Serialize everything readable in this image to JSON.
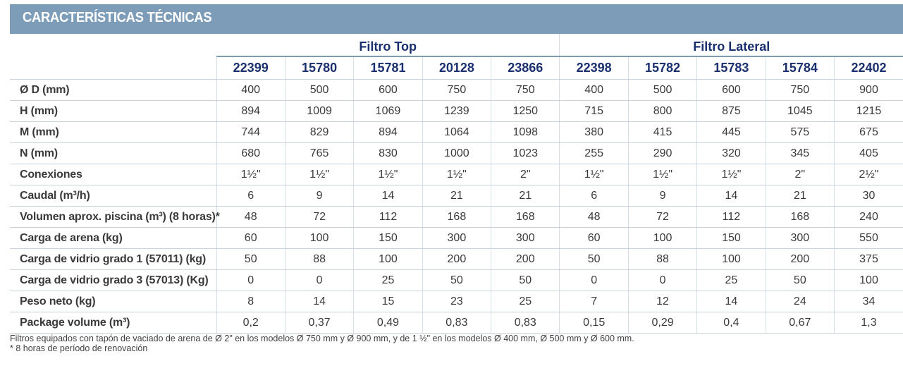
{
  "title": "CARACTERÍSTICAS TÉCNICAS",
  "groups": {
    "top": "Filtro Top",
    "lateral": "Filtro Lateral"
  },
  "codes": [
    "22399",
    "15780",
    "15781",
    "20128",
    "23866",
    "22398",
    "15782",
    "15783",
    "15784",
    "22402"
  ],
  "rows": [
    {
      "label": "Ø D (mm)",
      "values": [
        "400",
        "500",
        "600",
        "750",
        "750",
        "400",
        "500",
        "600",
        "750",
        "900"
      ]
    },
    {
      "label": "H (mm)",
      "values": [
        "894",
        "1009",
        "1069",
        "1239",
        "1250",
        "715",
        "800",
        "875",
        "1045",
        "1215"
      ]
    },
    {
      "label": "M (mm)",
      "values": [
        "744",
        "829",
        "894",
        "1064",
        "1098",
        "380",
        "415",
        "445",
        "575",
        "675"
      ]
    },
    {
      "label": "N (mm)",
      "values": [
        "680",
        "765",
        "830",
        "1000",
        "1023",
        "255",
        "290",
        "320",
        "345",
        "405"
      ]
    },
    {
      "label": "Conexiones",
      "values": [
        "1½\"",
        "1½\"",
        "1½\"",
        "1½\"",
        "2\"",
        "1½\"",
        "1½\"",
        "1½\"",
        "2\"",
        "2½\""
      ]
    },
    {
      "label": "Caudal (m³/h)",
      "values": [
        "6",
        "9",
        "14",
        "21",
        "21",
        "6",
        "9",
        "14",
        "21",
        "30"
      ]
    },
    {
      "label": "Volumen aprox. piscina (m³) (8 horas)*",
      "values": [
        "48",
        "72",
        "112",
        "168",
        "168",
        "48",
        "72",
        "112",
        "168",
        "240"
      ]
    },
    {
      "label": "Carga de arena (kg)",
      "values": [
        "60",
        "100",
        "150",
        "300",
        "300",
        "60",
        "100",
        "150",
        "300",
        "550"
      ]
    },
    {
      "label": "Carga de vidrio grado 1 (57011) (kg)",
      "values": [
        "50",
        "88",
        "100",
        "200",
        "200",
        "50",
        "88",
        "100",
        "200",
        "375"
      ]
    },
    {
      "label": "Carga de vidrio grado 3 (57013) (Kg)",
      "values": [
        "0",
        "0",
        "25",
        "50",
        "50",
        "0",
        "0",
        "25",
        "50",
        "100"
      ]
    },
    {
      "label": "Peso neto (kg)",
      "values": [
        "8",
        "14",
        "15",
        "23",
        "25",
        "7",
        "12",
        "14",
        "24",
        "34"
      ]
    },
    {
      "label": "Package volume (m³)",
      "values": [
        "0,2",
        "0,37",
        "0,49",
        "0,83",
        "0,83",
        "0,15",
        "0,29",
        "0,4",
        "0,67",
        "1,3"
      ]
    }
  ],
  "notes": [
    "Filtros equipados con tapón de vaciado de arena de Ø 2\" en los modelos Ø 750 mm y Ø 900 mm, y de 1 ½\" en los modelos Ø 400 mm, Ø 500 mm y Ø 600 mm.",
    "* 8 horas de período de renovación"
  ],
  "colors": {
    "banner": "#7d9cb8",
    "header_text": "#1a2f6e",
    "body_text": "#3a3a3a",
    "row_divider": "#c9d3de"
  }
}
